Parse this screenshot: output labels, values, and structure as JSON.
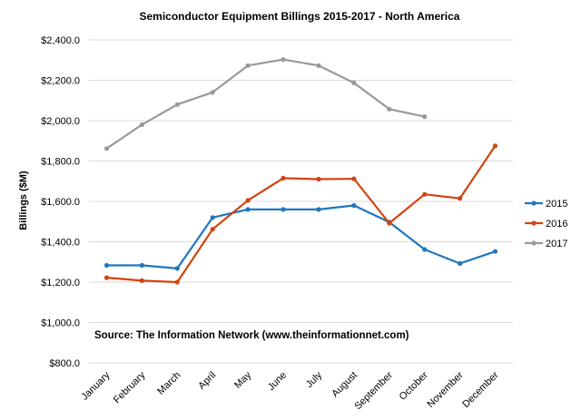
{
  "chart_data": {
    "type": "line",
    "title": "Semiconductor Equipment Billings 2015-2017 - North America",
    "xlabel": "",
    "ylabel": "Billings ($M)",
    "categories": [
      "January",
      "February",
      "March",
      "April",
      "May",
      "June",
      "July",
      "August",
      "September",
      "October",
      "November",
      "December"
    ],
    "ylim": [
      800,
      2400
    ],
    "yticks": [
      800,
      1000,
      1200,
      1400,
      1600,
      1800,
      2000,
      2200,
      2400
    ],
    "ytick_labels": [
      "$800.0",
      "$1,000.0",
      "$1,200.0",
      "$1,400.0",
      "$1,600.0",
      "$1,800.0",
      "$2,000.0",
      "$2,200.0",
      "$2,400.0"
    ],
    "grid": "horizontal",
    "legend_position": "right",
    "annotation": "Source: The Information Network (www.theinformationnet.com)",
    "series": [
      {
        "name": "2015",
        "color": "#1F77C0",
        "values": [
          1283,
          1283,
          1268,
          1520,
          1560,
          1560,
          1560,
          1580,
          1497,
          1362,
          1292,
          1352
        ]
      },
      {
        "name": "2016",
        "color": "#D2440F",
        "values": [
          1222,
          1207,
          1200,
          1462,
          1605,
          1715,
          1710,
          1712,
          1492,
          1635,
          1615,
          1875
        ]
      },
      {
        "name": "2017",
        "color": "#999999",
        "values": [
          1862,
          1980,
          2080,
          2140,
          2273,
          2303,
          2273,
          2187,
          2057,
          2020,
          null,
          null
        ]
      }
    ]
  }
}
